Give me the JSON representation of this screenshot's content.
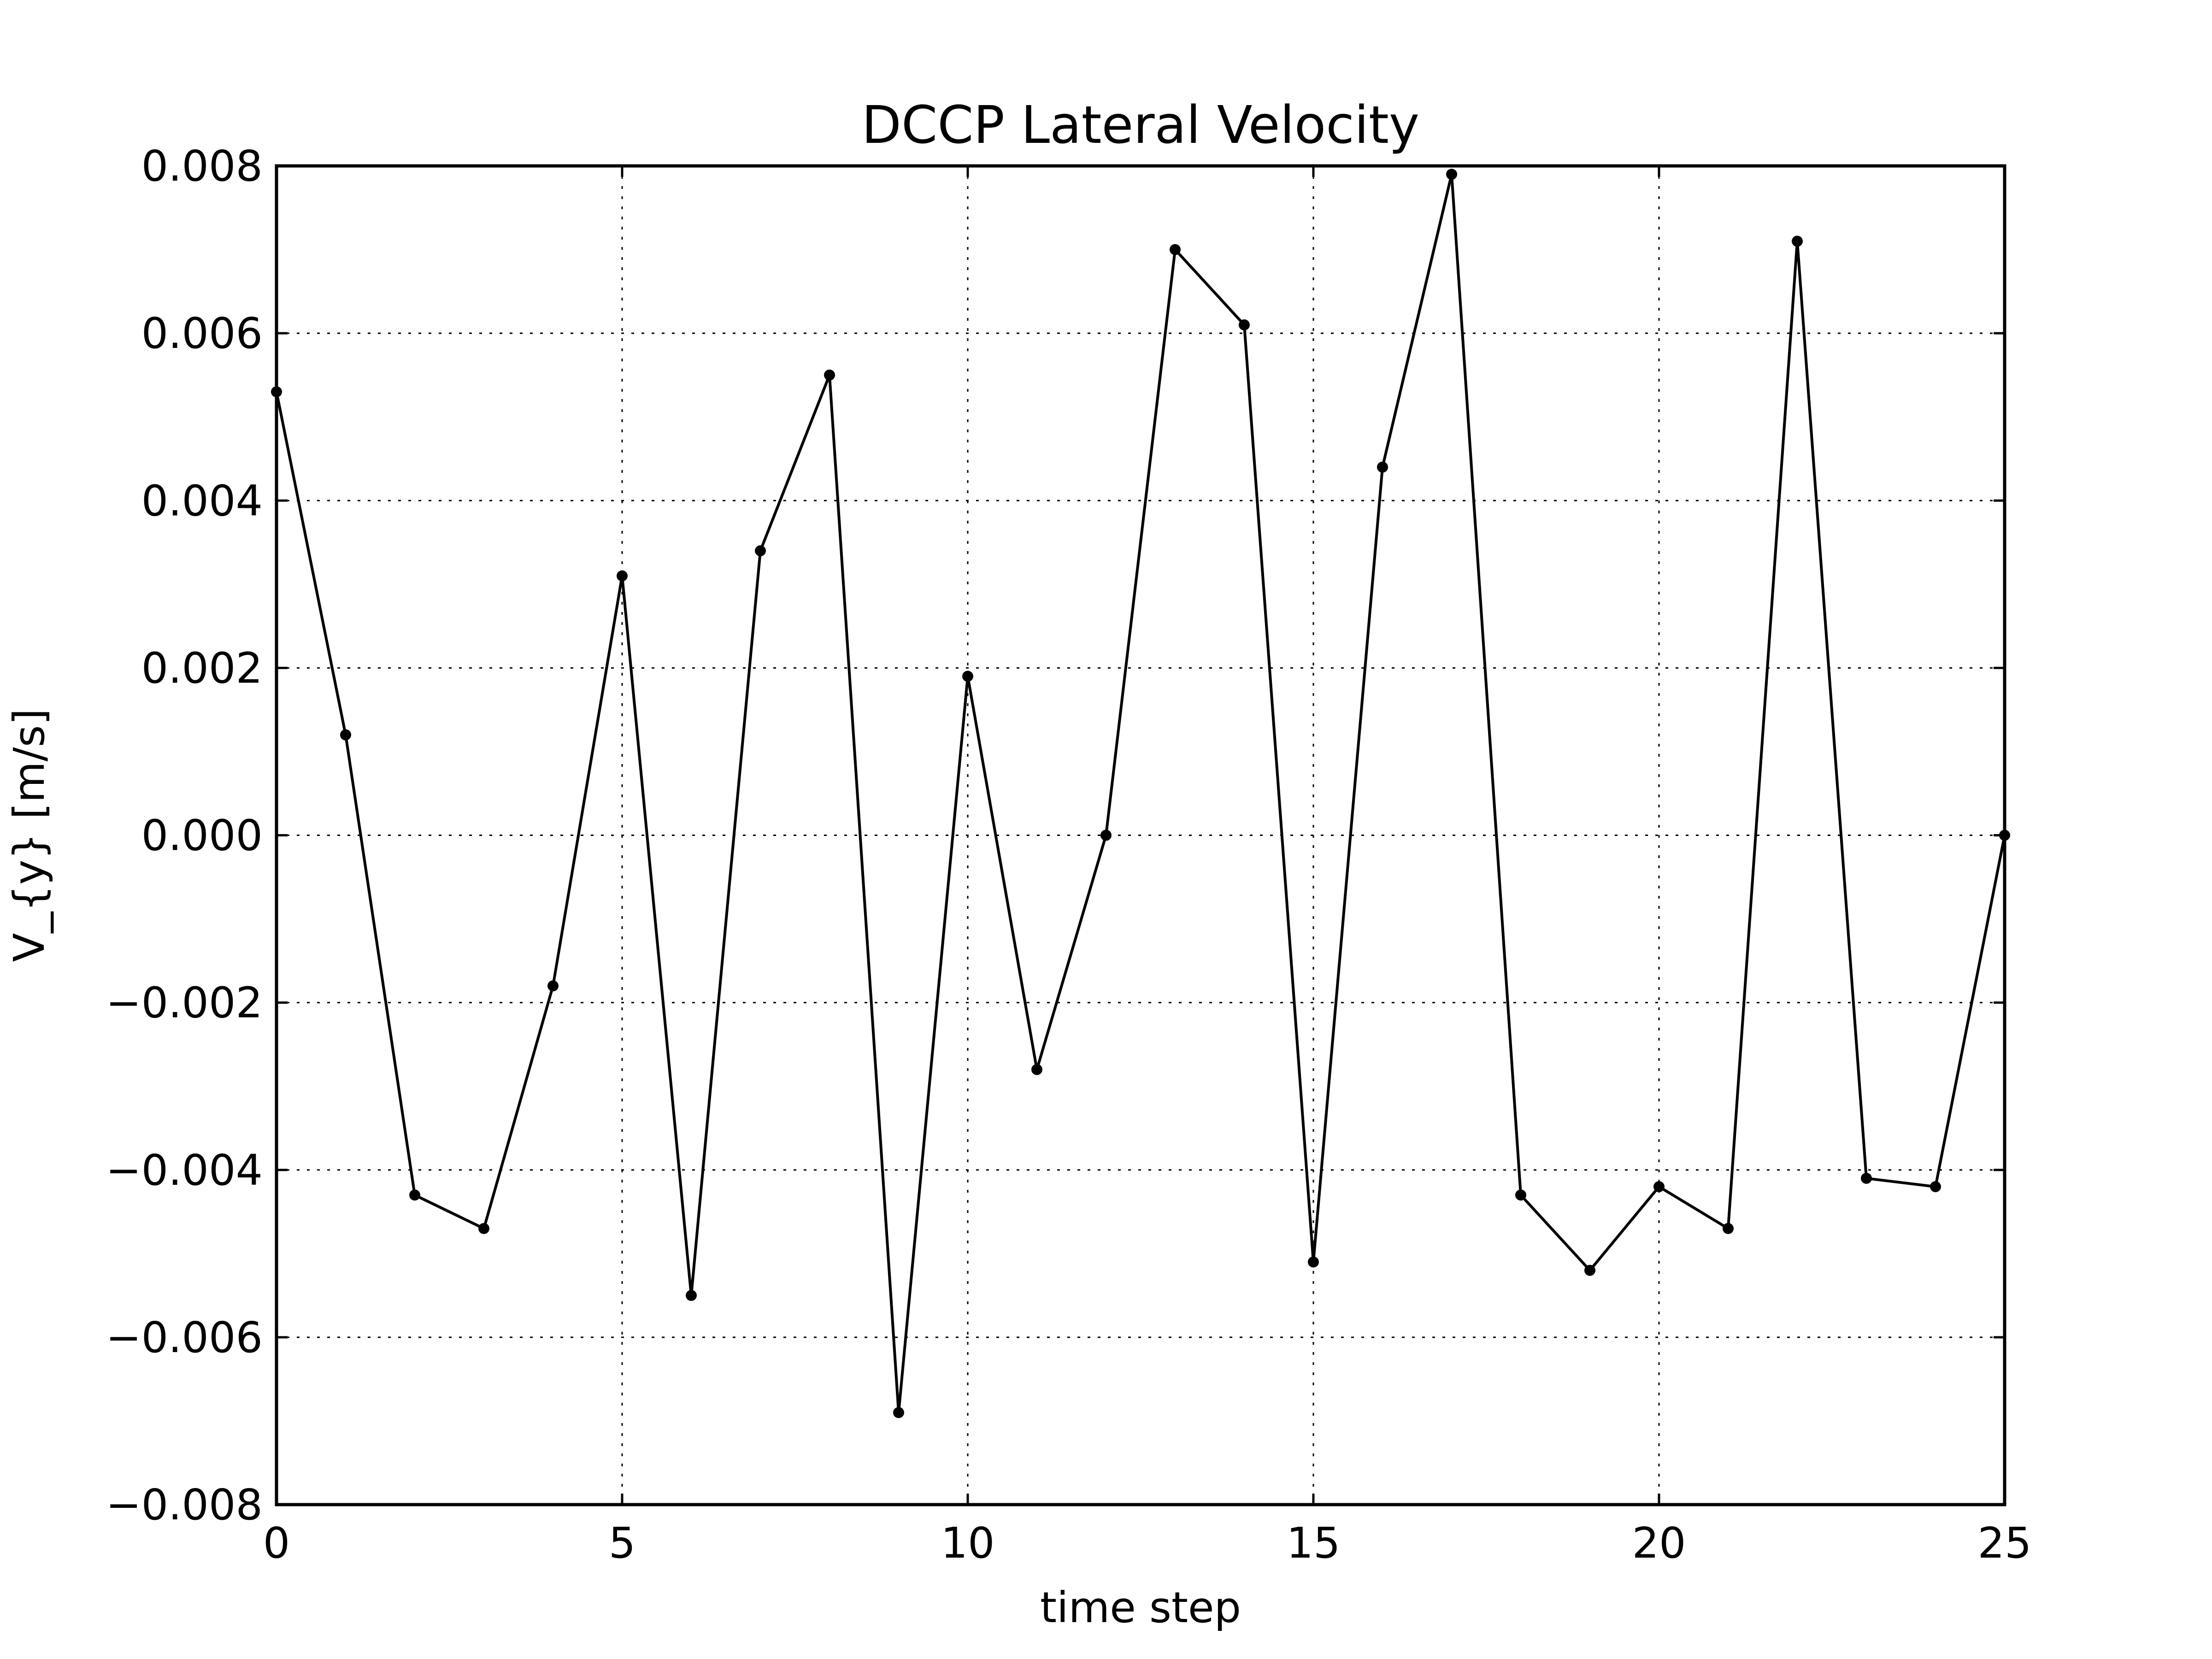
{
  "chart_data": {
    "type": "line",
    "title": "DCCP Lateral Velocity",
    "xlabel": "time step",
    "ylabel": "V_{y} [m/s]",
    "xlim": [
      0,
      25
    ],
    "ylim": [
      -0.008,
      0.008
    ],
    "grid": true,
    "x_ticks": [
      0,
      5,
      10,
      15,
      20,
      25
    ],
    "x_tick_labels": [
      "0",
      "5",
      "10",
      "15",
      "20",
      "25"
    ],
    "y_ticks": [
      0.008,
      0.006,
      0.004,
      0.002,
      0.0,
      -0.002,
      -0.004,
      -0.006,
      -0.008
    ],
    "y_tick_labels": [
      "0.008",
      "0.006",
      "0.004",
      "0.002",
      "0.000",
      "−0.002",
      "−0.004",
      "−0.006",
      "−0.008"
    ],
    "series": [
      {
        "color": "#000000",
        "marker": "circle",
        "x": [
          0,
          1,
          2,
          3,
          4,
          5,
          6,
          7,
          8,
          9,
          10,
          11,
          12,
          13,
          14,
          15,
          16,
          17,
          18,
          19,
          20,
          21,
          22,
          23,
          24,
          25
        ],
        "y": [
          0.0053,
          0.0012,
          -0.0043,
          -0.0047,
          -0.0018,
          0.0031,
          -0.0055,
          0.0034,
          0.0055,
          -0.0069,
          0.0019,
          -0.0028,
          0.0,
          0.007,
          0.0061,
          -0.0051,
          0.0044,
          0.0079,
          -0.0043,
          -0.0052,
          -0.0042,
          -0.0047,
          0.0071,
          -0.0041,
          -0.0042,
          0.0
        ]
      }
    ]
  }
}
